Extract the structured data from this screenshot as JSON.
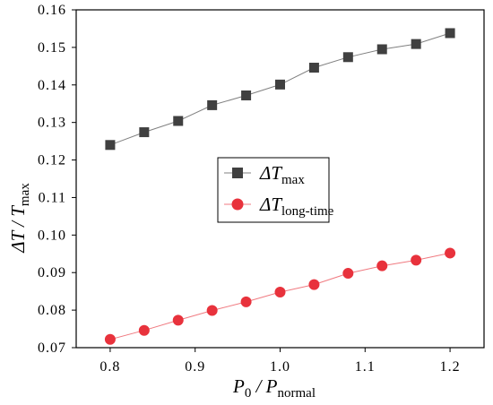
{
  "chart_data": {
    "type": "line",
    "xlabel": {
      "main": "P",
      "sub0": "0",
      "sep": " / P",
      "sub1": "normal"
    },
    "ylabel": {
      "main": "ΔT / T",
      "sub": "max"
    },
    "xlim": [
      0.76,
      1.24
    ],
    "ylim": [
      0.07,
      0.16
    ],
    "xticks": [
      "0.8",
      "0.9",
      "1.0",
      "1.1",
      "1.2"
    ],
    "yticks": [
      "0.07",
      "0.08",
      "0.09",
      "0.10",
      "0.11",
      "0.12",
      "0.13",
      "0.14",
      "0.15",
      "0.16"
    ],
    "x": [
      0.8,
      0.84,
      0.88,
      0.92,
      0.96,
      1.0,
      1.04,
      1.08,
      1.12,
      1.16,
      1.2
    ],
    "series": [
      {
        "name": {
          "main": "ΔT",
          "sub": "max"
        },
        "marker": "square",
        "color": "#404040",
        "line_color": "#808080",
        "values": [
          0.124,
          0.1274,
          0.1304,
          0.1346,
          0.1372,
          0.1401,
          0.1446,
          0.1474,
          0.1495,
          0.1509,
          0.1538
        ]
      },
      {
        "name": {
          "main": "ΔT",
          "sub": "long-time"
        },
        "marker": "circle",
        "color": "#e8323c",
        "line_color": "#f07a80",
        "values": [
          0.0722,
          0.0746,
          0.0773,
          0.0799,
          0.0822,
          0.0848,
          0.0868,
          0.0898,
          0.0918,
          0.0933,
          0.0952
        ]
      }
    ],
    "legend_position": "center"
  }
}
